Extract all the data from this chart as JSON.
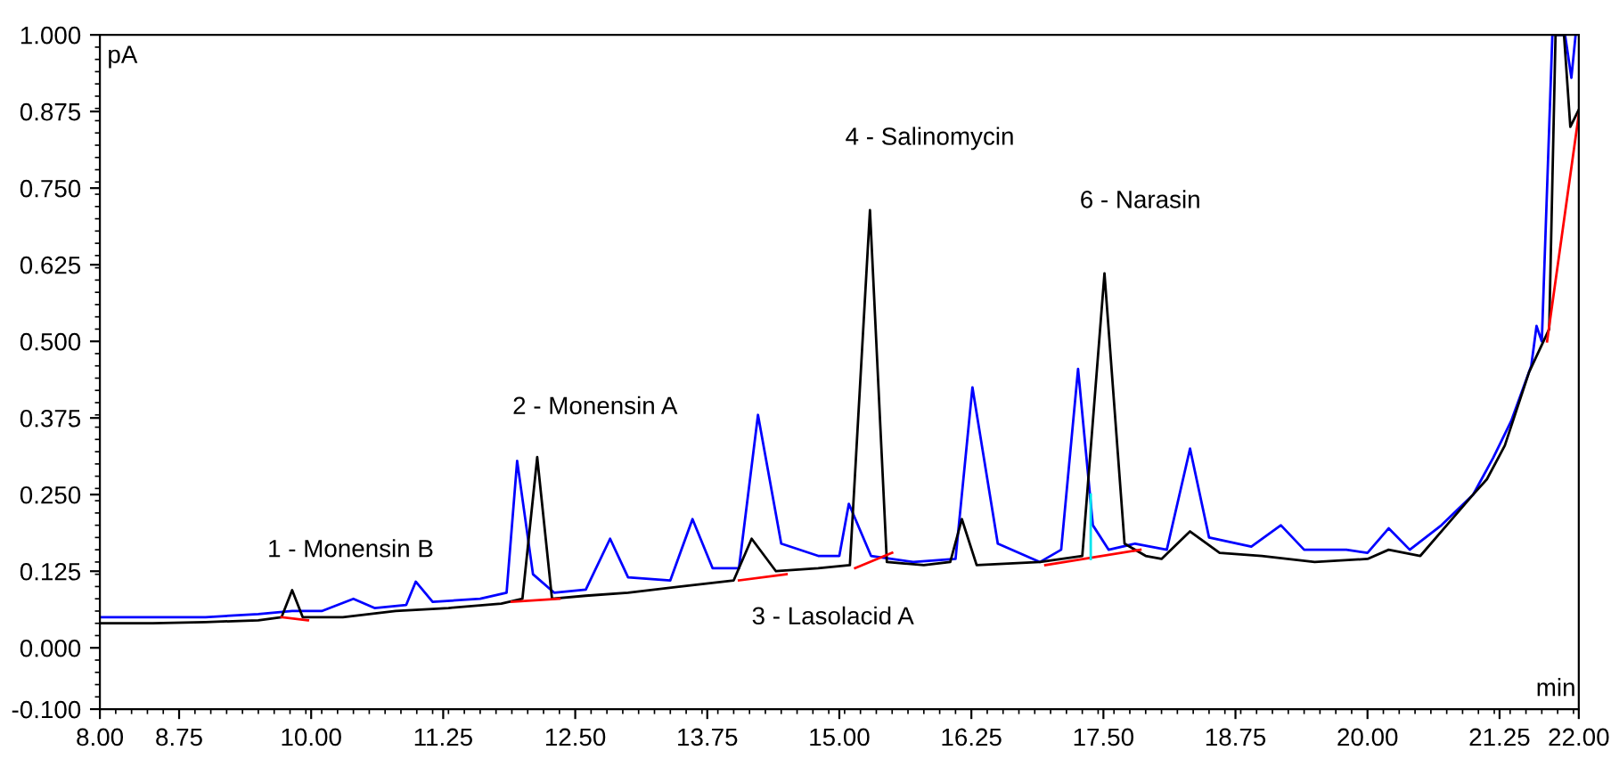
{
  "chart_data": {
    "type": "line",
    "xlabel": "min",
    "ylabel": "pA",
    "xlim": [
      8.0,
      22.0
    ],
    "ylim": [
      -0.1,
      1.0
    ],
    "xticks": [
      {
        "value": 8.0,
        "label": "8.00"
      },
      {
        "value": 8.75,
        "label": "8.75"
      },
      {
        "value": 10.0,
        "label": "10.00"
      },
      {
        "value": 11.25,
        "label": "11.25"
      },
      {
        "value": 12.5,
        "label": "12.50"
      },
      {
        "value": 13.75,
        "label": "13.75"
      },
      {
        "value": 15.0,
        "label": "15.00"
      },
      {
        "value": 16.25,
        "label": "16.25"
      },
      {
        "value": 17.5,
        "label": "17.50"
      },
      {
        "value": 18.75,
        "label": "18.75"
      },
      {
        "value": 20.0,
        "label": "20.00"
      },
      {
        "value": 21.25,
        "label": "21.25"
      },
      {
        "value": 22.0,
        "label": "22.00"
      }
    ],
    "yticks": [
      {
        "value": -0.1,
        "label": "-0.100"
      },
      {
        "value": 0.0,
        "label": "0.000"
      },
      {
        "value": 0.125,
        "label": "0.125"
      },
      {
        "value": 0.25,
        "label": "0.250"
      },
      {
        "value": 0.375,
        "label": "0.375"
      },
      {
        "value": 0.5,
        "label": "0.500"
      },
      {
        "value": 0.625,
        "label": "0.625"
      },
      {
        "value": 0.75,
        "label": "0.750"
      },
      {
        "value": 0.875,
        "label": "0.875"
      },
      {
        "value": 1.0,
        "label": "1.000"
      }
    ],
    "grid": false,
    "legend": false,
    "marker": "none",
    "line_style": "solid",
    "series": [
      {
        "color": "#0000ff",
        "x": [
          8.0,
          8.5,
          9.0,
          9.5,
          9.82,
          10.1,
          10.4,
          10.6,
          10.9,
          10.99,
          11.15,
          11.6,
          11.85,
          11.95,
          12.1,
          12.3,
          12.6,
          12.83,
          13.0,
          13.4,
          13.61,
          13.8,
          14.05,
          14.23,
          14.45,
          14.8,
          15.0,
          15.09,
          15.3,
          15.7,
          16.1,
          16.26,
          16.5,
          16.9,
          17.1,
          17.26,
          17.4,
          17.55,
          17.8,
          18.1,
          18.32,
          18.5,
          18.9,
          19.18,
          19.4,
          19.8,
          20.0,
          20.2,
          20.4,
          20.7,
          21.0,
          21.19,
          21.36,
          21.55,
          21.6,
          21.65,
          21.75,
          21.87,
          21.93,
          21.97
        ],
        "values": [
          0.05,
          0.05,
          0.05,
          0.055,
          0.06,
          0.06,
          0.08,
          0.065,
          0.07,
          0.108,
          0.075,
          0.08,
          0.09,
          0.305,
          0.12,
          0.09,
          0.095,
          0.178,
          0.115,
          0.11,
          0.21,
          0.13,
          0.13,
          0.38,
          0.17,
          0.15,
          0.15,
          0.235,
          0.15,
          0.14,
          0.145,
          0.425,
          0.17,
          0.14,
          0.16,
          0.455,
          0.2,
          0.16,
          0.17,
          0.16,
          0.325,
          0.18,
          0.165,
          0.2,
          0.16,
          0.16,
          0.155,
          0.195,
          0.16,
          0.2,
          0.25,
          0.31,
          0.37,
          0.46,
          0.525,
          0.5,
          1.0,
          1.0,
          0.93,
          1.0
        ]
      },
      {
        "color": "#000000",
        "x": [
          8.0,
          8.5,
          9.0,
          9.5,
          9.72,
          9.82,
          9.92,
          10.3,
          10.8,
          11.3,
          11.8,
          12.0,
          12.14,
          12.28,
          12.6,
          13.0,
          13.5,
          14.0,
          14.17,
          14.4,
          14.8,
          15.1,
          15.29,
          15.45,
          15.8,
          16.05,
          16.16,
          16.3,
          16.9,
          17.3,
          17.51,
          17.7,
          17.9,
          18.05,
          18.32,
          18.6,
          19.0,
          19.5,
          20.0,
          20.2,
          20.5,
          20.75,
          21.0,
          21.13,
          21.3,
          21.53,
          21.72,
          21.78,
          21.86,
          21.92,
          22.0
        ],
        "values": [
          0.04,
          0.04,
          0.042,
          0.045,
          0.05,
          0.094,
          0.05,
          0.05,
          0.06,
          0.065,
          0.072,
          0.08,
          0.311,
          0.08,
          0.085,
          0.09,
          0.1,
          0.11,
          0.178,
          0.125,
          0.13,
          0.135,
          0.714,
          0.14,
          0.135,
          0.14,
          0.21,
          0.135,
          0.14,
          0.15,
          0.611,
          0.17,
          0.15,
          0.145,
          0.19,
          0.155,
          0.15,
          0.14,
          0.145,
          0.16,
          0.15,
          0.2,
          0.25,
          0.275,
          0.33,
          0.45,
          0.52,
          1.0,
          1.0,
          0.85,
          0.878
        ]
      },
      {
        "color": "#ff0000",
        "x": [
          9.72,
          9.97,
          9.98,
          11.9,
          12.35,
          12.36,
          14.05,
          14.5,
          14.51,
          15.15,
          15.5,
          15.51,
          16.95,
          17.85,
          17.86,
          21.7,
          22.0
        ],
        "values": [
          0.05,
          0.045,
          null,
          0.075,
          0.08,
          null,
          0.11,
          0.12,
          null,
          0.13,
          0.155,
          null,
          0.135,
          0.16,
          null,
          0.5,
          0.87
        ]
      },
      {
        "color": "#00e5ee",
        "x": [
          17.38,
          17.38
        ],
        "values": [
          0.145,
          0.25
        ]
      }
    ],
    "annotations": [
      {
        "text": "1 - Monensin B",
        "x": 9.82,
        "y": 0.094
      },
      {
        "text": "2 - Monensin A",
        "x": 12.14,
        "y": 0.311
      },
      {
        "text": "3 - Lasolacid A",
        "x": 14.17,
        "y": 0.178
      },
      {
        "text": "4 - Salinomycin",
        "x": 15.29,
        "y": 0.714
      },
      {
        "text": "6 - Narasin",
        "x": 17.51,
        "y": 0.611
      }
    ]
  }
}
